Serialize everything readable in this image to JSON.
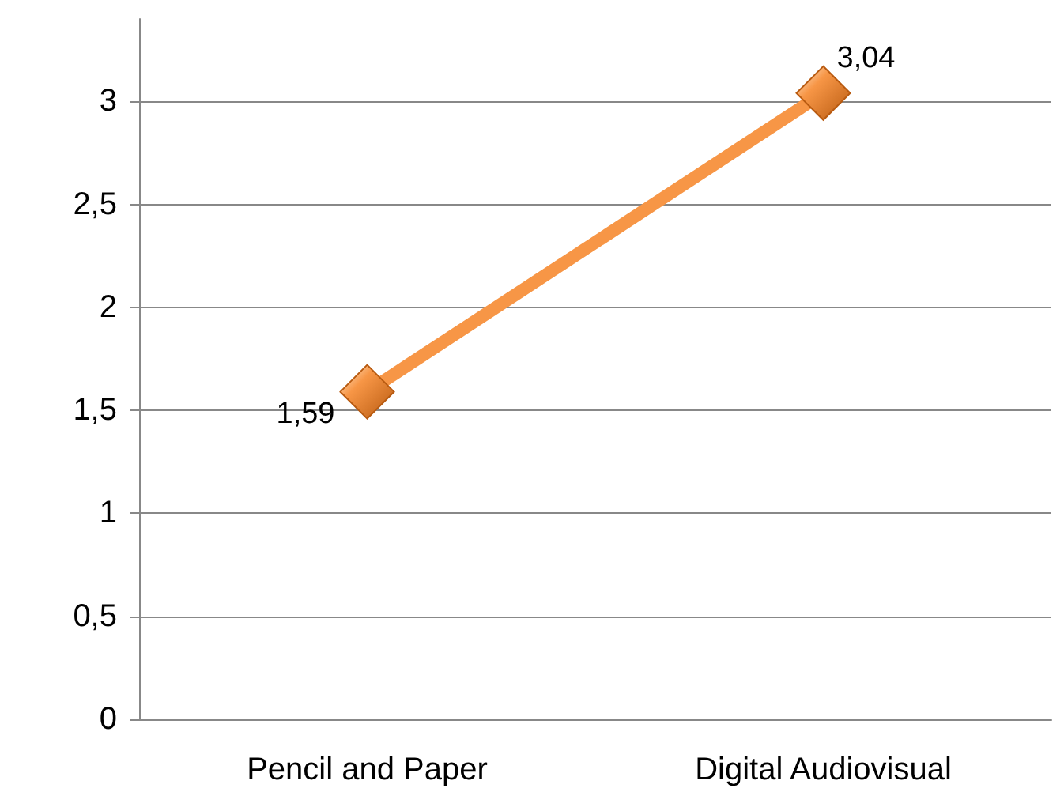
{
  "chart_data": {
    "type": "line",
    "categories": [
      "Pencil and Paper",
      "Digital Audiovisual"
    ],
    "series": [
      {
        "color": "#f79646",
        "values": [
          1.59,
          3.04
        ],
        "value_labels": [
          "1,59",
          "3,04"
        ]
      }
    ],
    "ylim": [
      0,
      3.4
    ],
    "yticks": [
      {
        "value": 0,
        "label": "0"
      },
      {
        "value": 0.5,
        "label": "0,5"
      },
      {
        "value": 1,
        "label": "1"
      },
      {
        "value": 1.5,
        "label": "1,5"
      },
      {
        "value": 2,
        "label": "2"
      },
      {
        "value": 2.5,
        "label": "2,5"
      },
      {
        "value": 3,
        "label": "3"
      }
    ],
    "grid": "y",
    "marker": "diamond",
    "line_style": "solid"
  }
}
